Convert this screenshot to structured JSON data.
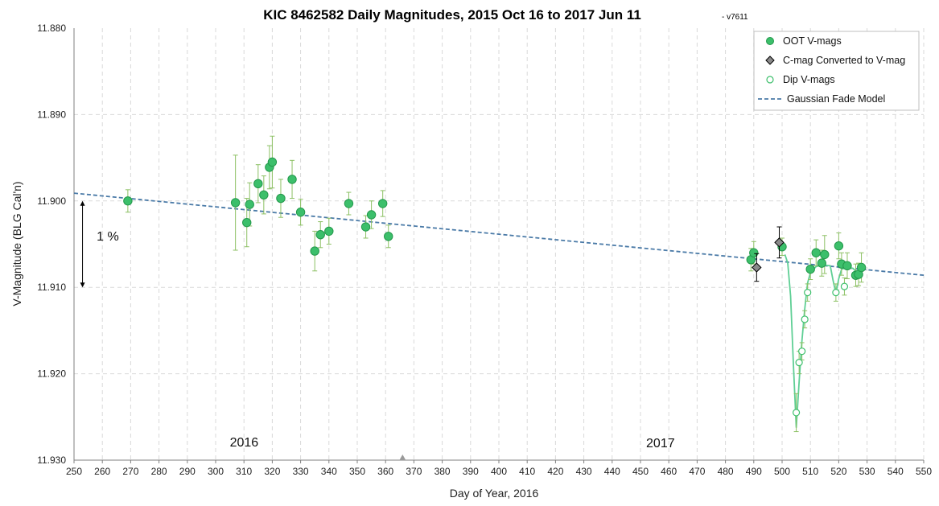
{
  "chart_data": {
    "type": "scatter",
    "title": "KIC 8462582 Daily Magnitudes, 2015 Oct 16 to 2017 Jun 11",
    "version_note": "- v7611",
    "xlabel": "Day of Year, 2016",
    "ylabel": "V-Magnitude (BLG Cal'n)",
    "xlim": [
      250,
      550
    ],
    "ylim": [
      11.88,
      11.93
    ],
    "y_inverted": true,
    "grid": true,
    "legend_position": "top-right",
    "annotations": [
      {
        "text": "2016",
        "x": 305,
        "y": 11.9284
      },
      {
        "text": "2017",
        "x": 452,
        "y": 11.9285
      },
      {
        "text": "1 %",
        "x": 258,
        "y": 11.9046
      }
    ],
    "scale_bar": {
      "x": 253,
      "y_from": 11.9,
      "y_to": 11.91
    },
    "year_marker_x": 366,
    "colors": {
      "oot": "#3cbf6b",
      "oot_edge": "#23984b",
      "errbar": "#8cc063",
      "cmag": "#8a8a8a",
      "model": "#4a7aa7",
      "dip_line": "#5fcf95"
    },
    "legend": [
      {
        "label": "OOT V-mags",
        "marker": "circle-filled"
      },
      {
        "label": "C-mag Converted to V-mag",
        "marker": "diamond-gray"
      },
      {
        "label": "Dip V-mags",
        "marker": "circle-open"
      },
      {
        "label": "Gaussian Fade Model",
        "marker": "dashed-line"
      }
    ],
    "series": [
      {
        "name": "OOT V-mags",
        "points": [
          {
            "x": 269,
            "y": 11.9,
            "err": 0.0013
          },
          {
            "x": 307,
            "y": 11.9002,
            "err": 0.0055
          },
          {
            "x": 311,
            "y": 11.9025,
            "err": 0.0028
          },
          {
            "x": 312,
            "y": 11.9004,
            "err": 0.0025
          },
          {
            "x": 315,
            "y": 11.898,
            "err": 0.0022
          },
          {
            "x": 317,
            "y": 11.8993,
            "err": 0.0022
          },
          {
            "x": 319,
            "y": 11.8961,
            "err": 0.0025
          },
          {
            "x": 320,
            "y": 11.8955,
            "err": 0.003
          },
          {
            "x": 323,
            "y": 11.8997,
            "err": 0.0022
          },
          {
            "x": 327,
            "y": 11.8975,
            "err": 0.0022
          },
          {
            "x": 330,
            "y": 11.9013,
            "err": 0.0015
          },
          {
            "x": 335,
            "y": 11.9058,
            "err": 0.0023
          },
          {
            "x": 337,
            "y": 11.9039,
            "err": 0.0015
          },
          {
            "x": 340,
            "y": 11.9035,
            "err": 0.0015
          },
          {
            "x": 347,
            "y": 11.9003,
            "err": 0.0013
          },
          {
            "x": 353,
            "y": 11.903,
            "err": 0.0013
          },
          {
            "x": 355,
            "y": 11.9016,
            "err": 0.0016
          },
          {
            "x": 359,
            "y": 11.9003,
            "err": 0.0015
          },
          {
            "x": 361,
            "y": 11.9041,
            "err": 0.0013
          },
          {
            "x": 489,
            "y": 11.9068,
            "err": 0.0013
          },
          {
            "x": 490,
            "y": 11.906,
            "err": 0.0013
          },
          {
            "x": 500,
            "y": 11.9053,
            "err": 0.001
          },
          {
            "x": 510,
            "y": 11.9079,
            "err": 0.0012
          },
          {
            "x": 512,
            "y": 11.906,
            "err": 0.0015
          },
          {
            "x": 514,
            "y": 11.9072,
            "err": 0.0015
          },
          {
            "x": 515,
            "y": 11.9062,
            "err": 0.0022
          },
          {
            "x": 520,
            "y": 11.9052,
            "err": 0.0015
          },
          {
            "x": 521,
            "y": 11.9073,
            "err": 0.0013
          },
          {
            "x": 523,
            "y": 11.9075,
            "err": 0.0015
          },
          {
            "x": 526,
            "y": 11.9086,
            "err": 0.0013
          },
          {
            "x": 527,
            "y": 11.9085,
            "err": 0.0013
          },
          {
            "x": 528,
            "y": 11.9077,
            "err": 0.0017
          }
        ]
      },
      {
        "name": "C-mag Converted to V-mag",
        "points": [
          {
            "x": 491,
            "y": 11.9077,
            "err": 0.0016
          },
          {
            "x": 499,
            "y": 11.9048,
            "err": 0.0018
          }
        ]
      },
      {
        "name": "Dip V-mags",
        "points": [
          {
            "x": 505,
            "y": 11.9245,
            "err": 0.0022
          },
          {
            "x": 506,
            "y": 11.9187,
            "err": 0.0013
          },
          {
            "x": 507,
            "y": 11.9174,
            "err": 0.001
          },
          {
            "x": 508,
            "y": 11.9137,
            "err": 0.001
          },
          {
            "x": 509,
            "y": 11.9106,
            "err": 0.001
          },
          {
            "x": 519,
            "y": 11.9106,
            "err": 0.001
          },
          {
            "x": 522,
            "y": 11.9099,
            "err": 0.001
          }
        ]
      },
      {
        "name": "Gaussian Fade Model",
        "points": [
          {
            "x": 250,
            "y": 11.8991
          },
          {
            "x": 550,
            "y": 11.9086
          }
        ]
      },
      {
        "name": "dip-model",
        "points": [
          {
            "x": 501,
            "y": 11.9062
          },
          {
            "x": 502,
            "y": 11.9072
          },
          {
            "x": 503,
            "y": 11.911
          },
          {
            "x": 504,
            "y": 11.919
          },
          {
            "x": 505,
            "y": 11.9262
          },
          {
            "x": 506,
            "y": 11.921
          },
          {
            "x": 507,
            "y": 11.9162
          },
          {
            "x": 508,
            "y": 11.9125
          },
          {
            "x": 509,
            "y": 11.9095
          },
          {
            "x": 510,
            "y": 11.9083
          },
          {
            "x": 512,
            "y": 11.9076
          },
          {
            "x": 514,
            "y": 11.9074
          },
          {
            "x": 517,
            "y": 11.9075
          },
          {
            "x": 518,
            "y": 11.9092
          },
          {
            "x": 519,
            "y": 11.9107
          },
          {
            "x": 520,
            "y": 11.909
          },
          {
            "x": 521,
            "y": 11.9079
          },
          {
            "x": 523,
            "y": 11.9077
          },
          {
            "x": 525,
            "y": 11.9078
          },
          {
            "x": 526,
            "y": 11.9081
          },
          {
            "x": 528,
            "y": 11.908
          }
        ]
      }
    ]
  }
}
